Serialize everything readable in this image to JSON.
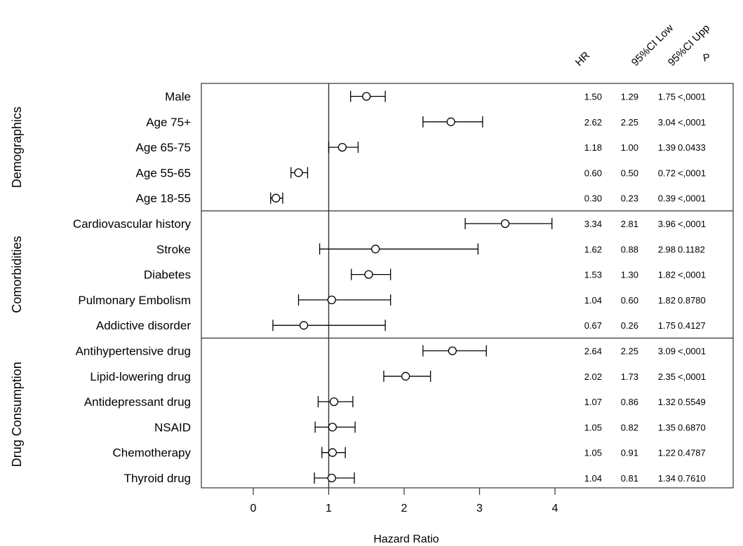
{
  "chart_data": {
    "type": "forest",
    "xlabel": "Hazard Ratio",
    "xlim": [
      -0.75,
      5.0
    ],
    "xticks": [
      0,
      1,
      2,
      3,
      4
    ],
    "reference_line": 1,
    "column_headers": [
      "HR",
      "95%CI Low",
      "95%CI Upp",
      "P"
    ],
    "groups": [
      {
        "name": "Demographics",
        "rows": [
          {
            "label": "Male",
            "hr": 1.5,
            "low": 1.29,
            "upp": 1.75,
            "p": "<,0001",
            "hr_text": "1.50",
            "low_text": "1.29",
            "upp_text": "1.75"
          },
          {
            "label": "Age 75+",
            "hr": 2.62,
            "low": 2.25,
            "upp": 3.04,
            "p": "<,0001",
            "hr_text": "2.62",
            "low_text": "2.25",
            "upp_text": "3.04"
          },
          {
            "label": "Age 65-75",
            "hr": 1.18,
            "low": 1.0,
            "upp": 1.39,
            "p": "0.0433",
            "hr_text": "1.18",
            "low_text": "1.00",
            "upp_text": "1.39"
          },
          {
            "label": "Age 55-65",
            "hr": 0.6,
            "low": 0.5,
            "upp": 0.72,
            "p": "<,0001",
            "hr_text": "0.60",
            "low_text": "0.50",
            "upp_text": "0.72"
          },
          {
            "label": "Age 18-55",
            "hr": 0.3,
            "low": 0.23,
            "upp": 0.39,
            "p": "<,0001",
            "hr_text": "0.30",
            "low_text": "0.23",
            "upp_text": "0.39"
          }
        ]
      },
      {
        "name": "Comorbidities",
        "rows": [
          {
            "label": "Cardiovascular history",
            "hr": 3.34,
            "low": 2.81,
            "upp": 3.96,
            "p": "<,0001",
            "hr_text": "3.34",
            "low_text": "2.81",
            "upp_text": "3.96"
          },
          {
            "label": "Stroke",
            "hr": 1.62,
            "low": 0.88,
            "upp": 2.98,
            "p": "0.1182",
            "hr_text": "1.62",
            "low_text": "0.88",
            "upp_text": "2.98"
          },
          {
            "label": "Diabetes",
            "hr": 1.53,
            "low": 1.3,
            "upp": 1.82,
            "p": "<,0001",
            "hr_text": "1.53",
            "low_text": "1.30",
            "upp_text": "1.82"
          },
          {
            "label": "Pulmonary Embolism",
            "hr": 1.04,
            "low": 0.6,
            "upp": 1.82,
            "p": "0.8780",
            "hr_text": "1.04",
            "low_text": "0.60",
            "upp_text": "1.82"
          },
          {
            "label": "Addictive disorder",
            "hr": 0.67,
            "low": 0.26,
            "upp": 1.75,
            "p": "0.4127",
            "hr_text": "0.67",
            "low_text": "0.26",
            "upp_text": "1.75"
          }
        ]
      },
      {
        "name": "Drug Consumption",
        "rows": [
          {
            "label": "Antihypertensive drug",
            "hr": 2.64,
            "low": 2.25,
            "upp": 3.09,
            "p": "<,0001",
            "hr_text": "2.64",
            "low_text": "2.25",
            "upp_text": "3.09"
          },
          {
            "label": "Lipid-lowering drug",
            "hr": 2.02,
            "low": 1.73,
            "upp": 2.35,
            "p": "<,0001",
            "hr_text": "2.02",
            "low_text": "1.73",
            "upp_text": "2.35"
          },
          {
            "label": "Antidepressant drug",
            "hr": 1.07,
            "low": 0.86,
            "upp": 1.32,
            "p": "0.5549",
            "hr_text": "1.07",
            "low_text": "0.86",
            "upp_text": "1.32"
          },
          {
            "label": "NSAID",
            "hr": 1.05,
            "low": 0.82,
            "upp": 1.35,
            "p": "0.6870",
            "hr_text": "1.05",
            "low_text": "0.82",
            "upp_text": "1.35"
          },
          {
            "label": "Chemotherapy",
            "hr": 1.05,
            "low": 0.91,
            "upp": 1.22,
            "p": "0.4787",
            "hr_text": "1.05",
            "low_text": "0.91",
            "upp_text": "1.22"
          },
          {
            "label": "Thyroid drug",
            "hr": 1.04,
            "low": 0.81,
            "upp": 1.34,
            "p": "0.7610",
            "hr_text": "1.04",
            "low_text": "0.81",
            "upp_text": "1.34"
          }
        ]
      }
    ]
  }
}
